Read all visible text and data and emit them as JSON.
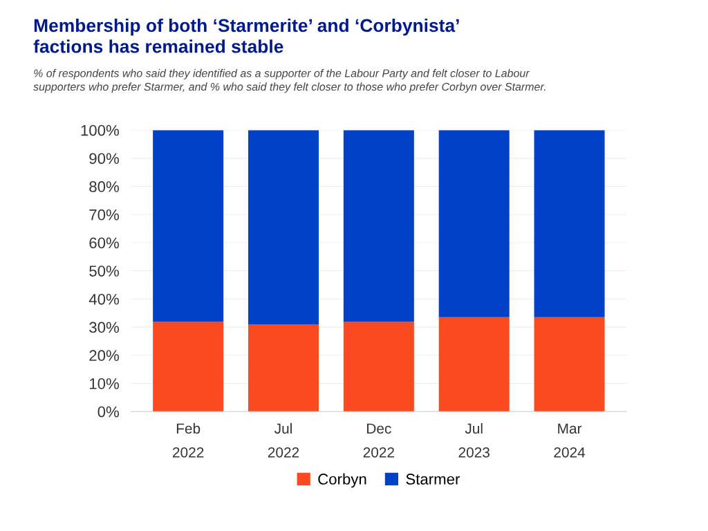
{
  "chart_data": {
    "type": "bar",
    "stacked": true,
    "title": "Membership of both ‘Starmerite’ and ‘Corbynista’\nfactions has remained stable",
    "subtitle": "% of respondents who said they identified as a supporter of the Labour Party and felt closer to Labour\nsupporters who prefer Starmer, and % who said they felt closer to those who prefer Corbyn over Starmer.",
    "categories": [
      "Feb\n2022",
      "Jul\n2022",
      "Dec\n2022",
      "Jul\n2023",
      "Mar\n2024"
    ],
    "series": [
      {
        "name": "Corbyn",
        "color": "#fc4a20",
        "values": [
          32,
          31,
          32,
          33.5,
          33.5
        ]
      },
      {
        "name": "Starmer",
        "color": "#0041c7",
        "values": [
          68,
          69,
          68,
          66.5,
          66.5
        ]
      }
    ],
    "ylim": [
      0,
      100
    ],
    "yticks": [
      {
        "value": 0,
        "label": "0%"
      },
      {
        "value": 10,
        "label": "10%"
      },
      {
        "value": 20,
        "label": "20%"
      },
      {
        "value": 30,
        "label": "30%"
      },
      {
        "value": 40,
        "label": "40%"
      },
      {
        "value": 50,
        "label": "50%"
      },
      {
        "value": 60,
        "label": "60%"
      },
      {
        "value": 70,
        "label": "70%"
      },
      {
        "value": 80,
        "label": "80%"
      },
      {
        "value": 90,
        "label": "90%"
      },
      {
        "value": 100,
        "label": "100%"
      }
    ],
    "grid": "y",
    "legend": "bottom"
  }
}
